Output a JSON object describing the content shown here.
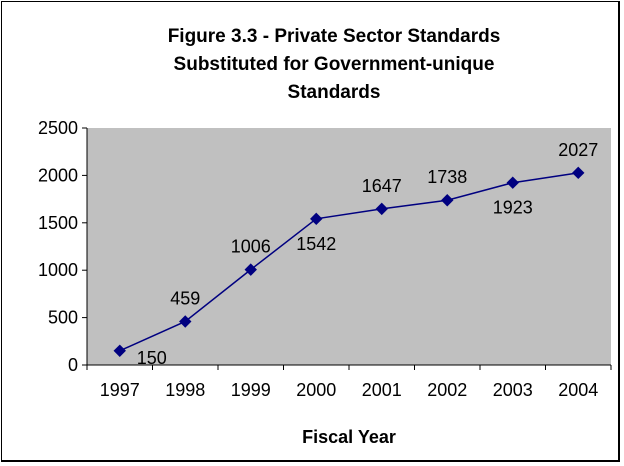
{
  "chart_data": {
    "type": "line",
    "title_lines": [
      "Figure 3.3 - Private Sector Standards",
      "Substituted for Government-unique",
      "Standards"
    ],
    "xlabel": "Fiscal Year",
    "ylabel": "",
    "categories": [
      "1997",
      "1998",
      "1999",
      "2000",
      "2001",
      "2002",
      "2003",
      "2004"
    ],
    "series": [
      {
        "values": [
          150,
          459,
          1006,
          1542,
          1647,
          1738,
          1923,
          2027
        ]
      }
    ],
    "data_labels": [
      "150",
      "459",
      "1006",
      "1542",
      "1647",
      "1738",
      "1923",
      "2027"
    ],
    "ylim": [
      0,
      2500
    ],
    "yticks": [
      "0",
      "500",
      "1000",
      "1500",
      "2000",
      "2500"
    ],
    "grid": false,
    "legend": "none",
    "colors": {
      "series": "#000080",
      "plot_area": "#c0c0c0",
      "frame": "#000000"
    }
  }
}
